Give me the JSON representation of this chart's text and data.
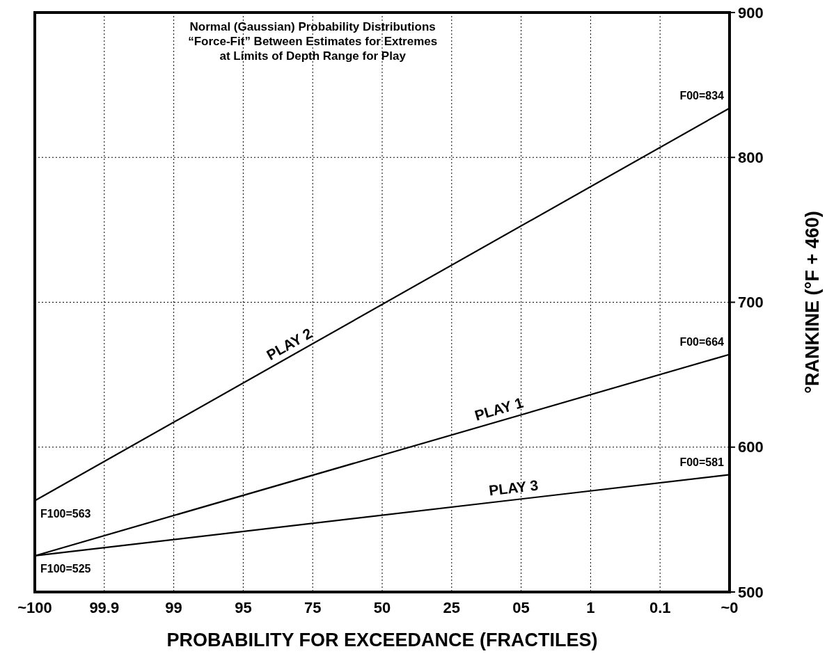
{
  "chart_data": {
    "type": "line",
    "title": "Normal (Gaussian) Probability Distributions\n“Force-Fit” Between Estimates for Extremes\nat Limits of Depth Range for Play",
    "xlabel": "PROBABILITY FOR EXCEEDANCE (FRACTILES)",
    "ylabel": "°RANKINE (°F + 460)",
    "categories": [
      "~100",
      "99.9",
      "99",
      "95",
      "75",
      "50",
      "25",
      "05",
      "1",
      "0.1",
      "~0"
    ],
    "series": [
      {
        "name": "PLAY 2",
        "color": "#000000",
        "x": [
          "~100",
          "~0"
        ],
        "values": [
          563,
          834
        ]
      },
      {
        "name": "PLAY 1",
        "color": "#000000",
        "x": [
          "~100",
          "~0"
        ],
        "values": [
          525,
          664
        ]
      },
      {
        "name": "PLAY 3",
        "color": "#000000",
        "x": [
          "~100",
          "~0"
        ],
        "values": [
          525,
          581
        ]
      }
    ],
    "ylim": [
      500,
      900
    ],
    "yticks": [
      500,
      600,
      700,
      800,
      900
    ],
    "grid": true,
    "line_style": "solid",
    "marker": "none",
    "annotations": [
      {
        "text": "F100=563",
        "x": "~100",
        "y": 563
      },
      {
        "text": "F100=525",
        "x": "~100",
        "y": 525
      },
      {
        "text": "F00=834",
        "x": "~0",
        "y": 834
      },
      {
        "text": "F00=664",
        "x": "~0",
        "y": 664
      },
      {
        "text": "F00=581",
        "x": "~0",
        "y": 581
      }
    ]
  }
}
